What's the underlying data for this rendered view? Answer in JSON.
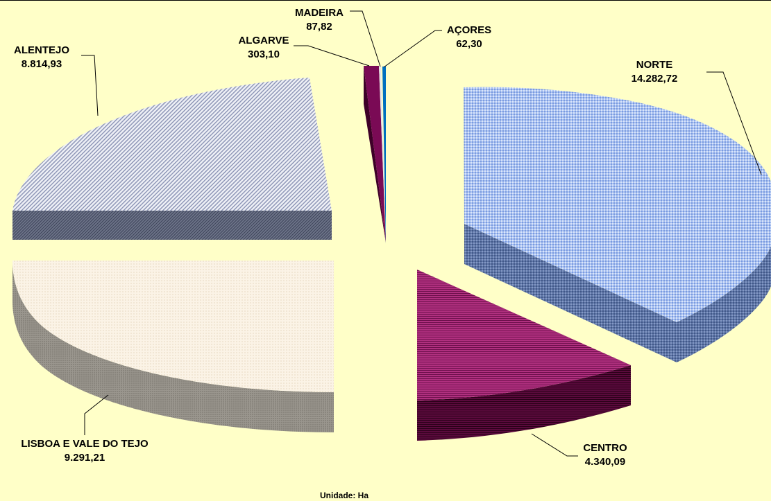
{
  "chart_data": {
    "type": "pie",
    "title": "",
    "unit_label": "Unidade: Ha",
    "categories": [
      "NORTE",
      "CENTRO",
      "LISBOA E VALE DO TEJO",
      "ALENTEJO",
      "ALGARVE",
      "MADEIRA",
      "AÇORES"
    ],
    "values": [
      14282.72,
      4340.09,
      9291.21,
      8814.93,
      303.1,
      87.82,
      62.3
    ],
    "value_labels": [
      "14.282,72",
      "4.340,09",
      "9.291,21",
      "8.814,93",
      "303,10",
      "87,82",
      "62,30"
    ],
    "colors": [
      "#9BB7F0",
      "#B0307F",
      "#F6EBD8",
      "#D8DDE8",
      "#7A0A55",
      "#E0E0E0",
      "#0070C0"
    ],
    "style": "3d-exploded",
    "legend": "none"
  }
}
